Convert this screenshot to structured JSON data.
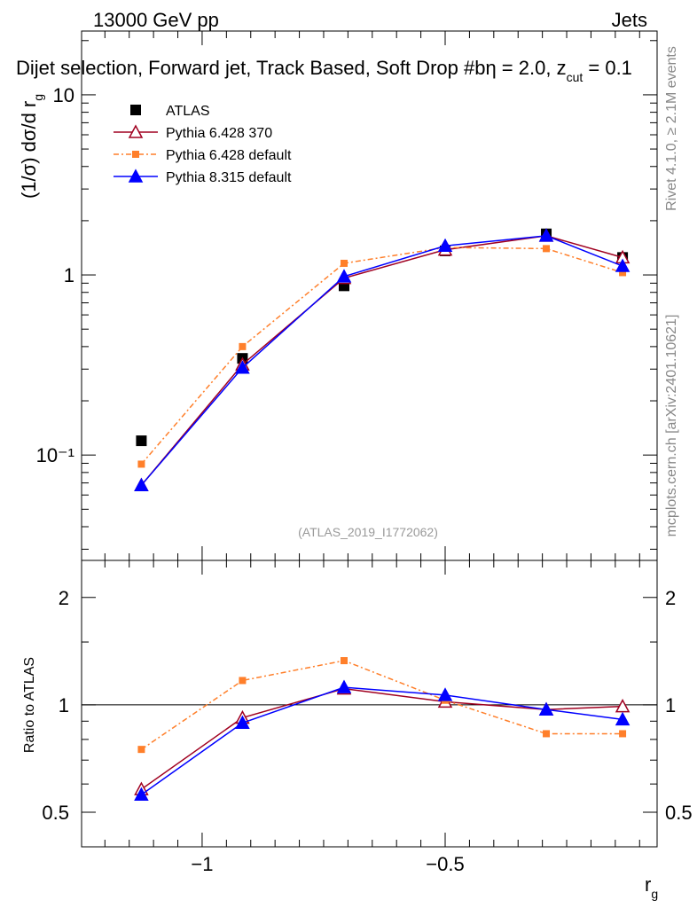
{
  "chart_data": [
    {
      "type": "line",
      "panel": "main",
      "title_left": "13000 GeV pp",
      "title_right": "Jets",
      "subtitle": "Dijet selection, Forward jet, Track Based, Soft Drop #bη = 2.0, z",
      "subtitle_sub": "cut",
      "subtitle_tail": " = 0.1",
      "ylabel": "(1/σ) dσ/d r",
      "ylabel_sub": "g",
      "yscale": "log",
      "ylim": [
        0.026,
        22.6
      ],
      "xlim": [
        -1.248,
        -0.064
      ],
      "ytick_labels": [
        {
          "v": 10,
          "t": "10"
        },
        {
          "v": 1,
          "t": "1"
        },
        {
          "v": 0.1,
          "t": "10⁻¹"
        }
      ],
      "watermark": "(ATLAS_2019_I1772062)",
      "x": [
        -1.125,
        -0.917,
        -0.708,
        -0.5,
        -0.292,
        -0.135
      ],
      "series": [
        {
          "name": "ATLAS",
          "color": "#000000",
          "marker": "square",
          "values": [
            0.12,
            0.344,
            0.87,
            1.36,
            1.69,
            1.25
          ]
        },
        {
          "name": "Pythia 6.428 370",
          "color": "#a00020",
          "marker": "triangle-open",
          "dash": "",
          "values": [
            0.068,
            0.318,
            0.96,
            1.38,
            1.65,
            1.25
          ]
        },
        {
          "name": "Pythia 6.428 default",
          "color": "#ff7f2a",
          "marker": "square-small",
          "dash": "6,3,2,3",
          "values": [
            0.089,
            0.4,
            1.16,
            1.42,
            1.4,
            1.03
          ]
        },
        {
          "name": "Pythia 8.315 default",
          "color": "#0000ff",
          "marker": "triangle",
          "dash": "",
          "values": [
            0.068,
            0.305,
            0.98,
            1.45,
            1.65,
            1.12
          ]
        }
      ]
    },
    {
      "type": "line",
      "panel": "ratio",
      "ylabel": "Ratio to ATLAS",
      "yscale": "log2",
      "ylim": [
        0.4,
        2.54
      ],
      "ytick_labels": [
        {
          "v": 2,
          "t": "2"
        },
        {
          "v": 1,
          "t": "1"
        },
        {
          "v": 0.5,
          "t": "0.5"
        }
      ],
      "xlabel": "r",
      "xlabel_sub": "g",
      "xtick_labels": [
        {
          "v": -1,
          "t": "−1"
        },
        {
          "v": -0.5,
          "t": "−0.5"
        }
      ],
      "x": [
        -1.125,
        -0.917,
        -0.708,
        -0.5,
        -0.292,
        -0.135
      ],
      "series": [
        {
          "name": "Pythia 6.428 370",
          "values": [
            0.58,
            0.92,
            1.11,
            1.02,
            0.97,
            0.99
          ]
        },
        {
          "name": "Pythia 6.428 default",
          "values": [
            0.75,
            1.17,
            1.33,
            1.03,
            0.83,
            0.83
          ]
        },
        {
          "name": "Pythia 8.315 default",
          "values": [
            0.56,
            0.89,
            1.12,
            1.065,
            0.97,
            0.91
          ]
        }
      ]
    }
  ],
  "side_labels": {
    "rivet": "Rivet 4.1.0, ≥ 2.1M events",
    "mcplots": "mcplots.cern.ch [arXiv:2401.10621]"
  }
}
